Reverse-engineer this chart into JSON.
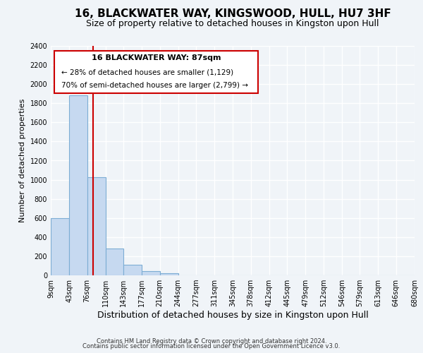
{
  "title": "16, BLACKWATER WAY, KINGSWOOD, HULL, HU7 3HF",
  "subtitle": "Size of property relative to detached houses in Kingston upon Hull",
  "xlabel": "Distribution of detached houses by size in Kingston upon Hull",
  "ylabel": "Number of detached properties",
  "bar_edges": [
    9,
    43,
    76,
    110,
    143,
    177,
    210,
    244,
    277,
    311,
    345,
    378,
    412,
    445,
    479,
    512,
    546,
    579,
    613,
    646,
    680
  ],
  "bar_heights": [
    600,
    1880,
    1030,
    280,
    110,
    45,
    20,
    0,
    0,
    0,
    0,
    0,
    0,
    0,
    0,
    0,
    0,
    0,
    0,
    0
  ],
  "bar_color": "#c6d9f0",
  "bar_edge_color": "#7dadd4",
  "property_line_x": 87,
  "property_line_color": "#cc0000",
  "ylim": [
    0,
    2400
  ],
  "yticks": [
    0,
    200,
    400,
    600,
    800,
    1000,
    1200,
    1400,
    1600,
    1800,
    2000,
    2200,
    2400
  ],
  "annotation_title": "16 BLACKWATER WAY: 87sqm",
  "annotation_line1": "← 28% of detached houses are smaller (1,129)",
  "annotation_line2": "70% of semi-detached houses are larger (2,799) →",
  "footer1": "Contains HM Land Registry data © Crown copyright and database right 2024.",
  "footer2": "Contains public sector information licensed under the Open Government Licence v3.0.",
  "tick_labels": [
    "9sqm",
    "43sqm",
    "76sqm",
    "110sqm",
    "143sqm",
    "177sqm",
    "210sqm",
    "244sqm",
    "277sqm",
    "311sqm",
    "345sqm",
    "378sqm",
    "412sqm",
    "445sqm",
    "479sqm",
    "512sqm",
    "546sqm",
    "579sqm",
    "613sqm",
    "646sqm",
    "680sqm"
  ],
  "background_color": "#f0f4f8",
  "grid_color": "#ffffff",
  "title_fontsize": 11,
  "subtitle_fontsize": 9,
  "xlabel_fontsize": 9,
  "ylabel_fontsize": 8,
  "tick_fontsize": 7,
  "footer_fontsize": 6
}
